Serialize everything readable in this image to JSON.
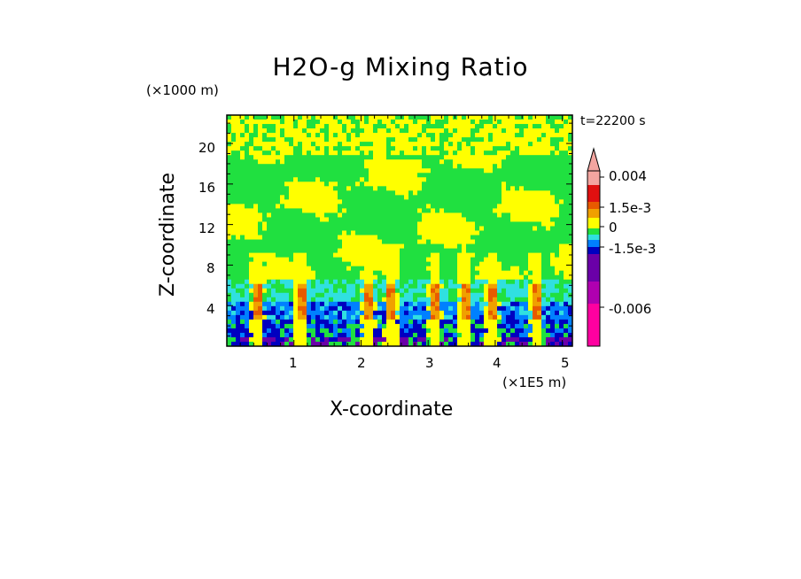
{
  "chart_data": {
    "type": "heatmap",
    "title": "H2O-g Mixing Ratio",
    "xlabel": "X-coordinate",
    "ylabel": "Z-coordinate",
    "x_unit": "(×1E5 m)",
    "y_unit": "(×1000 m)",
    "annotation": "t=22200 s",
    "xlim": [
      0,
      5.15
    ],
    "ylim": [
      0,
      22.8
    ],
    "x_ticks": [
      "1",
      "2",
      "3",
      "4",
      "5"
    ],
    "y_ticks": [
      "4",
      "8",
      "12",
      "16",
      "20"
    ],
    "colorbar": {
      "labels": [
        "0.004",
        "1.5e-3",
        "0",
        "-1.5e-3",
        "-0.006"
      ],
      "colors": [
        "#f3a5a0",
        "#e01010",
        "#e85a00",
        "#f0a000",
        "#ffff00",
        "#20e040",
        "#30e0e0",
        "#0080ff",
        "#0000c0",
        "#6a00a8",
        "#b000b0",
        "#ff00a0"
      ]
    }
  }
}
